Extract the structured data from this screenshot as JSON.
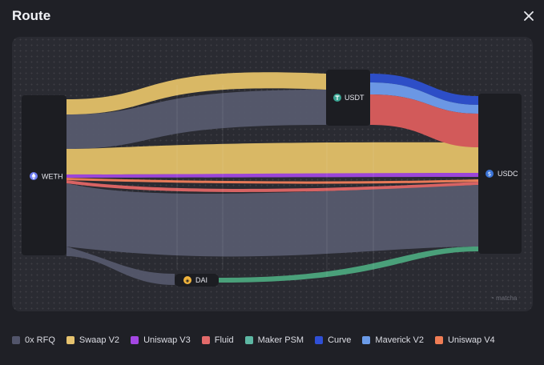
{
  "dialog": {
    "title": "Route",
    "close_icon": "close-icon"
  },
  "nodes": {
    "weth": {
      "label": "WETH",
      "icon": "ethereum-icon"
    },
    "usdt": {
      "label": "USDT",
      "icon": "tether-icon"
    },
    "usdc": {
      "label": "USDC",
      "icon": "usd-coin-icon"
    },
    "dai": {
      "label": "DAI",
      "icon": "dai-icon"
    }
  },
  "watermark": "matcha",
  "legend": [
    {
      "label": "0x RFQ",
      "color": "#52556b"
    },
    {
      "label": "Swaap V2",
      "color": "#e6c36f"
    },
    {
      "label": "Uniswap V3",
      "color": "#a447e3"
    },
    {
      "label": "Fluid",
      "color": "#e26a6a"
    },
    {
      "label": "Maker PSM",
      "color": "#5db7a3"
    },
    {
      "label": "Curve",
      "color": "#2f4fd6"
    },
    {
      "label": "Maverick V2",
      "color": "#6b9be8"
    },
    {
      "label": "Uniswap V4",
      "color": "#f07d55"
    }
  ]
}
